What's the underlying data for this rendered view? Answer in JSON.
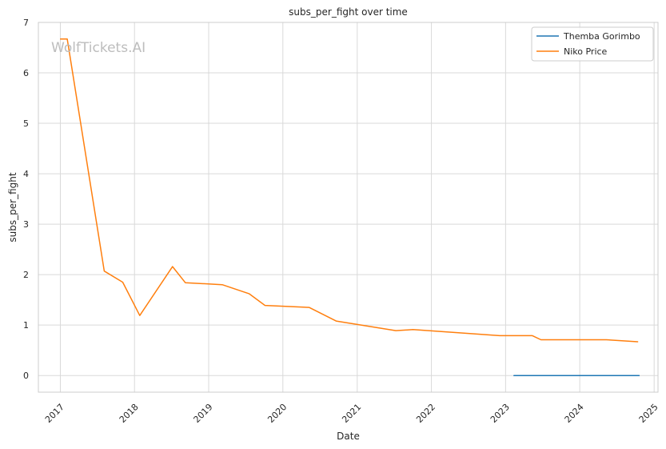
{
  "watermark": "WolfTickets.AI",
  "chart_data": {
    "type": "line",
    "title": "subs_per_fight over time",
    "xlabel": "Date",
    "ylabel": "subs_per_fight",
    "x_axis_type": "date",
    "xlim": [
      "2016-09-15",
      "2025-01-20"
    ],
    "ylim": [
      -0.33,
      7
    ],
    "x_ticks": [
      "2017",
      "2018",
      "2019",
      "2020",
      "2021",
      "2022",
      "2023",
      "2024",
      "2025"
    ],
    "y_ticks": [
      0,
      1,
      2,
      3,
      4,
      5,
      6,
      7
    ],
    "grid": true,
    "legend_position": "top-right",
    "series": [
      {
        "name": "Themba Gorimbo",
        "color": "#1f77b4",
        "points": [
          [
            "2023-02-11",
            0
          ],
          [
            "2023-06-10",
            0
          ],
          [
            "2023-11-11",
            0
          ],
          [
            "2024-05-18",
            0
          ],
          [
            "2024-10-19",
            0
          ]
        ]
      },
      {
        "name": "Niko Price",
        "color": "#ff7f0e",
        "points": [
          [
            "2017-01-02",
            6.67
          ],
          [
            "2017-02-04",
            6.67
          ],
          [
            "2017-08-05",
            2.07
          ],
          [
            "2017-11-04",
            1.85
          ],
          [
            "2018-01-27",
            1.19
          ],
          [
            "2018-07-07",
            2.16
          ],
          [
            "2018-09-08",
            1.84
          ],
          [
            "2019-03-09",
            1.8
          ],
          [
            "2019-07-20",
            1.62
          ],
          [
            "2019-10-05",
            1.39
          ],
          [
            "2020-05-09",
            1.35
          ],
          [
            "2020-09-19",
            1.08
          ],
          [
            "2021-07-10",
            0.89
          ],
          [
            "2021-10-02",
            0.91
          ],
          [
            "2022-12-03",
            0.79
          ],
          [
            "2023-05-13",
            0.79
          ],
          [
            "2023-06-24",
            0.71
          ],
          [
            "2024-05-11",
            0.71
          ],
          [
            "2024-10-12",
            0.67
          ]
        ]
      }
    ]
  }
}
